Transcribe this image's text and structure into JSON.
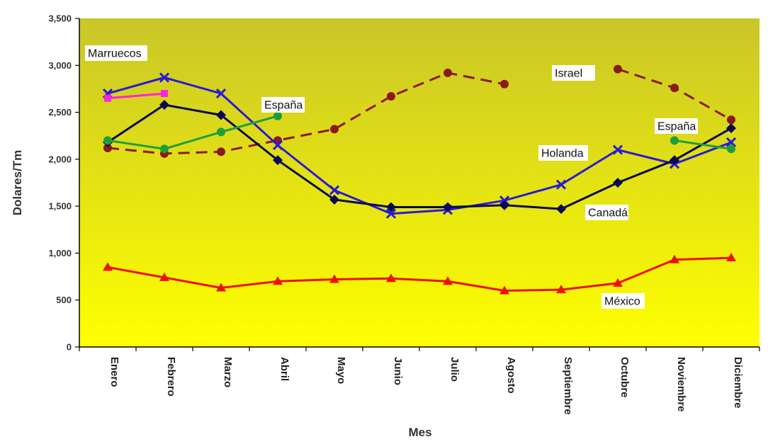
{
  "chart_data": {
    "type": "line",
    "xlabel": "Mes",
    "ylabel": "Dolares/Tm",
    "ylim": [
      0,
      3500
    ],
    "yticks": [
      0,
      500,
      1000,
      1500,
      2000,
      2500,
      3000,
      3500
    ],
    "ytick_labels": [
      "0",
      "500",
      "1,000",
      "1,500",
      "2,000",
      "2,500",
      "3,000",
      "3,500"
    ],
    "categories": [
      "Enero",
      "Febrero",
      "Marzo",
      "Abril",
      "Mayo",
      "Junio",
      "Julio",
      "Agosto",
      "Septiembre",
      "Octubre",
      "Noviembre",
      "Diciembre"
    ],
    "grid": false,
    "legend": "none",
    "series": [
      {
        "name": "Israel",
        "color": "#8b1a1a",
        "dashed": true,
        "marker": "circle",
        "values": [
          2120,
          2060,
          2080,
          2200,
          2320,
          2670,
          2920,
          2800,
          null,
          2960,
          2760,
          2420
        ]
      },
      {
        "name": "Holanda",
        "color": "#2a1ad6",
        "dashed": false,
        "marker": "x",
        "values": [
          2700,
          2870,
          2700,
          2150,
          1670,
          1420,
          1460,
          1560,
          1730,
          2100,
          1950,
          2180
        ]
      },
      {
        "name": "Canadá",
        "color": "#0a0a50",
        "dashed": false,
        "marker": "diamond",
        "values": [
          2180,
          2580,
          2470,
          1990,
          1570,
          1490,
          1490,
          1510,
          1470,
          1750,
          1990,
          2330
        ]
      },
      {
        "name": "España",
        "color": "#1e9e3a",
        "dashed": false,
        "marker": "circle",
        "values": [
          2200,
          2110,
          2290,
          2460,
          null,
          null,
          null,
          null,
          null,
          null,
          2200,
          2110
        ]
      },
      {
        "name": "Marruecos",
        "color": "#ff22dd",
        "dashed": false,
        "marker": "square",
        "values": [
          2650,
          2700,
          null,
          null,
          null,
          null,
          null,
          null,
          null,
          null,
          null,
          null
        ]
      },
      {
        "name": "México",
        "color": "#ee1100",
        "dashed": false,
        "marker": "triangle",
        "values": [
          850,
          740,
          630,
          700,
          720,
          730,
          700,
          600,
          610,
          680,
          930,
          950
        ]
      }
    ],
    "annotations": [
      {
        "text": "Marruecos",
        "series": "Marruecos"
      },
      {
        "text": "España",
        "series": "España"
      },
      {
        "text": "Israel",
        "series": "Israel"
      },
      {
        "text": "España",
        "series": "España"
      },
      {
        "text": "Holanda",
        "series": "Holanda"
      },
      {
        "text": "Canadá",
        "series": "Canadá"
      },
      {
        "text": "México",
        "series": "México"
      }
    ],
    "colors": {
      "bg_top": "#c9c628",
      "bg_bottom": "#ffff00",
      "axis": "#000000"
    }
  }
}
